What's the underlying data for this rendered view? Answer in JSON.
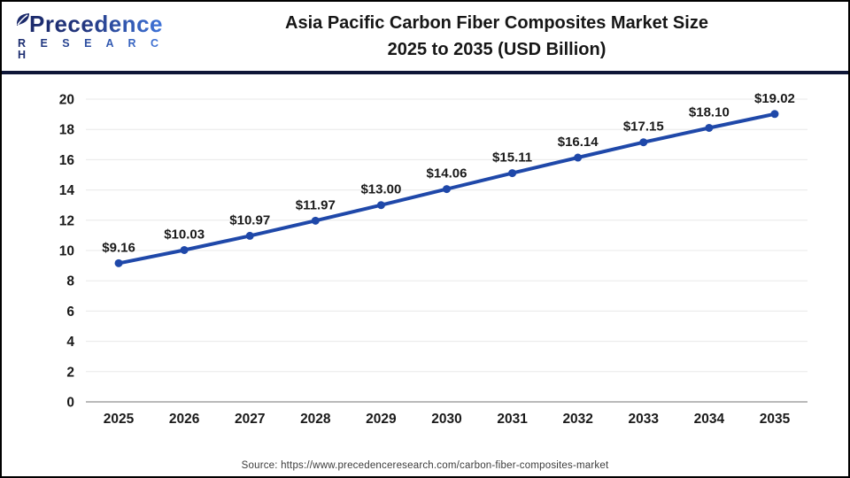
{
  "header": {
    "logo": {
      "name": "Precedence",
      "subtitle": "R E S E A R C H"
    },
    "title_line1": "Asia Pacific Carbon Fiber Composites Market Size",
    "title_line2": "2025 to 2035 (USD Billion)"
  },
  "chart_data": {
    "type": "line",
    "title": "Asia Pacific Carbon Fiber Composites Market Size 2025 to 2035 (USD Billion)",
    "categories": [
      "2025",
      "2026",
      "2027",
      "2028",
      "2029",
      "2030",
      "2031",
      "2032",
      "2033",
      "2034",
      "2035"
    ],
    "values": [
      9.16,
      10.03,
      10.97,
      11.97,
      13.0,
      14.06,
      15.11,
      16.14,
      17.15,
      18.1,
      19.02
    ],
    "point_labels": [
      "$9.16",
      "$10.03",
      "$10.97",
      "$11.97",
      "$13.00",
      "$14.06",
      "$15.11",
      "$16.14",
      "$17.15",
      "$18.10",
      "$19.02"
    ],
    "xlabel": "",
    "ylabel": "",
    "ylim": [
      0,
      20
    ],
    "ytick_step": 2,
    "grid": true,
    "legend_position": "none",
    "line_color": "#1f48a9",
    "marker_color": "#1f48a9",
    "grid_color": "#e8e8e8",
    "axis_color": "#b9b9b9",
    "tick_label_color": "#1a1a1a",
    "data_label_color": "#1a1a1a"
  },
  "footer": {
    "source": "Source: https://www.precedenceresearch.com/carbon-fiber-composites-market"
  }
}
